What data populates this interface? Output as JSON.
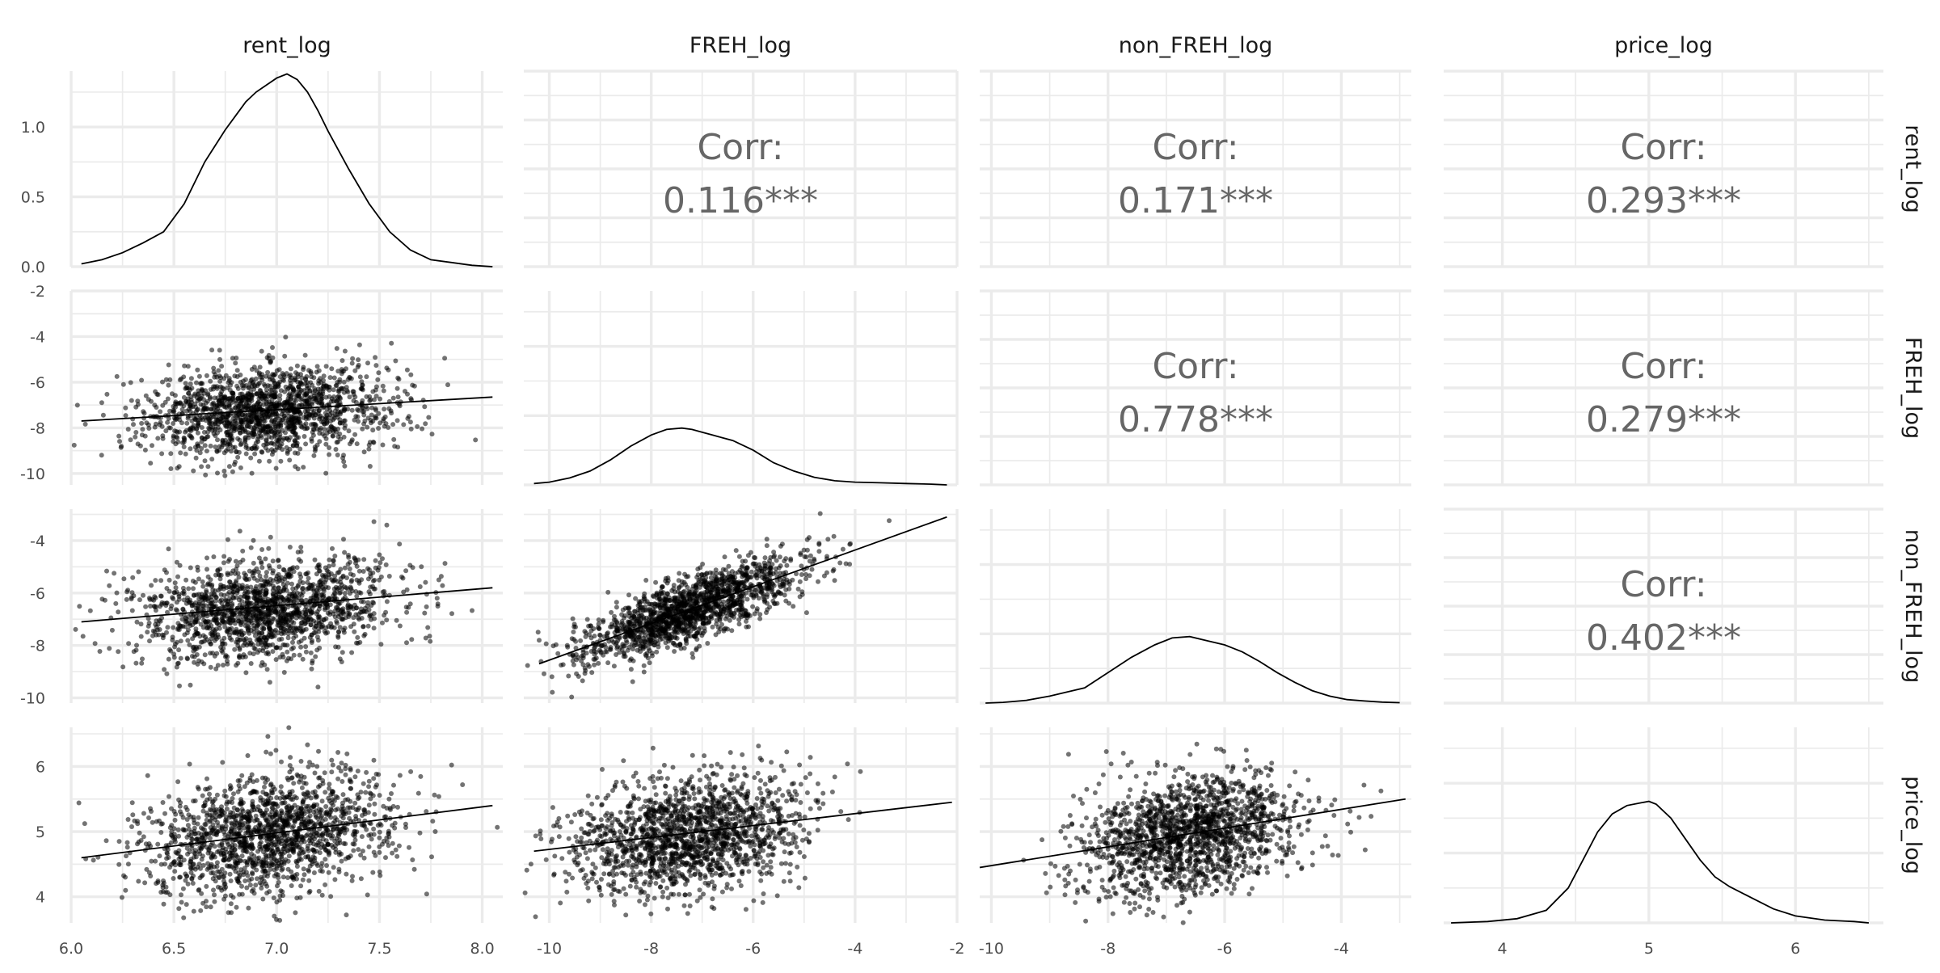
{
  "chart_data": {
    "type": "scatter",
    "title": "",
    "variables": [
      "rent_log",
      "FREH_log",
      "non_FREH_log",
      "price_log"
    ],
    "axes": {
      "rent_log": {
        "range": [
          6.0,
          8.1
        ],
        "ticks": [
          6.0,
          6.5,
          7.0,
          7.5,
          8.0
        ],
        "tick_labels": [
          "6.0",
          "6.5",
          "7.0",
          "7.5",
          "8.0"
        ]
      },
      "FREH_log": {
        "range": [
          -10.5,
          -2.0
        ],
        "ticks": [
          -10,
          -8,
          -6,
          -4,
          -2
        ],
        "tick_labels": [
          "-10",
          "-8",
          "-6",
          "-4",
          "-2"
        ]
      },
      "non_FREH_log": {
        "range": [
          -10.2,
          -2.8
        ],
        "ticks": [
          -10,
          -8,
          -6,
          -4
        ],
        "tick_labels": [
          "-10",
          "-8",
          "-6",
          "-4"
        ]
      },
      "price_log": {
        "range": [
          3.6,
          6.6
        ],
        "ticks": [
          4,
          5,
          6
        ],
        "tick_labels": [
          "4",
          "5",
          "6"
        ]
      }
    },
    "density_axis": {
      "range": [
        0.0,
        1.4
      ],
      "ticks": [
        0.0,
        0.5,
        1.0
      ],
      "tick_labels": [
        "0.0",
        "0.5",
        "1.0"
      ]
    },
    "density_curves": {
      "rent_log": {
        "x": [
          6.05,
          6.15,
          6.25,
          6.35,
          6.45,
          6.55,
          6.65,
          6.75,
          6.8,
          6.85,
          6.9,
          6.95,
          7.0,
          7.05,
          7.1,
          7.15,
          7.2,
          7.25,
          7.35,
          7.45,
          7.55,
          7.65,
          7.75,
          7.85,
          7.95,
          8.05
        ],
        "y": [
          0.02,
          0.05,
          0.1,
          0.17,
          0.25,
          0.45,
          0.75,
          0.98,
          1.08,
          1.18,
          1.25,
          1.3,
          1.35,
          1.38,
          1.34,
          1.25,
          1.12,
          0.97,
          0.7,
          0.45,
          0.25,
          0.12,
          0.05,
          0.03,
          0.01,
          0.0
        ]
      },
      "FREH_log": {
        "x": [
          -10.3,
          -10.0,
          -9.6,
          -9.2,
          -8.8,
          -8.4,
          -8.0,
          -7.7,
          -7.4,
          -7.2,
          -7.0,
          -6.8,
          -6.6,
          -6.4,
          -6.0,
          -5.6,
          -5.2,
          -4.8,
          -4.4,
          -4.0,
          -3.5,
          -3.0,
          -2.5,
          -2.2
        ],
        "y": [
          0.01,
          0.02,
          0.05,
          0.1,
          0.18,
          0.28,
          0.36,
          0.4,
          0.41,
          0.4,
          0.38,
          0.36,
          0.34,
          0.32,
          0.25,
          0.16,
          0.1,
          0.055,
          0.03,
          0.02,
          0.015,
          0.01,
          0.005,
          0.0
        ]
      },
      "non_FREH_log": {
        "x": [
          -10.1,
          -9.8,
          -9.4,
          -9.0,
          -8.7,
          -8.4,
          -8.0,
          -7.6,
          -7.2,
          -6.9,
          -6.6,
          -6.3,
          -6.0,
          -5.7,
          -5.4,
          -5.1,
          -4.8,
          -4.5,
          -4.2,
          -3.9,
          -3.6,
          -3.3,
          -3.0
        ],
        "y": [
          0.0,
          0.005,
          0.02,
          0.05,
          0.08,
          0.11,
          0.22,
          0.33,
          0.42,
          0.47,
          0.48,
          0.45,
          0.42,
          0.37,
          0.3,
          0.22,
          0.15,
          0.09,
          0.05,
          0.025,
          0.015,
          0.007,
          0.003
        ]
      },
      "price_log": {
        "x": [
          3.65,
          3.9,
          4.1,
          4.3,
          4.45,
          4.55,
          4.65,
          4.75,
          4.85,
          4.95,
          5.0,
          5.05,
          5.15,
          5.25,
          5.35,
          5.45,
          5.55,
          5.7,
          5.85,
          6.0,
          6.2,
          6.4,
          6.5
        ],
        "y": [
          0.0,
          0.01,
          0.03,
          0.09,
          0.25,
          0.45,
          0.65,
          0.78,
          0.84,
          0.86,
          0.87,
          0.85,
          0.75,
          0.6,
          0.45,
          0.33,
          0.26,
          0.18,
          0.1,
          0.05,
          0.02,
          0.01,
          0.0
        ]
      }
    },
    "correlations": [
      {
        "row": "rent_log",
        "col": "FREH_log",
        "label": "Corr:",
        "value": "0.116***"
      },
      {
        "row": "rent_log",
        "col": "non_FREH_log",
        "label": "Corr:",
        "value": "0.171***"
      },
      {
        "row": "rent_log",
        "col": "price_log",
        "label": "Corr:",
        "value": "0.293***"
      },
      {
        "row": "FREH_log",
        "col": "non_FREH_log",
        "label": "Corr:",
        "value": "0.778***"
      },
      {
        "row": "FREH_log",
        "col": "price_log",
        "label": "Corr:",
        "value": "0.279***"
      },
      {
        "row": "non_FREH_log",
        "col": "price_log",
        "label": "Corr:",
        "value": "0.402***"
      }
    ],
    "scatter_panels": [
      {
        "x": "rent_log",
        "y": "FREH_log",
        "fit_line": [
          [
            6.05,
            -7.7
          ],
          [
            8.05,
            -6.65
          ]
        ],
        "center": [
          6.95,
          -7.3
        ],
        "spread": [
          0.3,
          1.0
        ],
        "n_points": 1600
      },
      {
        "x": "rent_log",
        "y": "non_FREH_log",
        "fit_line": [
          [
            6.05,
            -7.1
          ],
          [
            8.05,
            -5.8
          ]
        ],
        "center": [
          6.95,
          -6.6
        ],
        "spread": [
          0.3,
          0.95
        ],
        "n_points": 1600
      },
      {
        "x": "FREH_log",
        "y": "non_FREH_log",
        "fit_line": [
          [
            -10.2,
            -8.7
          ],
          [
            -2.2,
            -3.1
          ]
        ],
        "center": [
          -7.2,
          -6.6
        ],
        "spread": [
          1.1,
          0.6
        ],
        "n_points": 1600
      },
      {
        "x": "rent_log",
        "y": "price_log",
        "fit_line": [
          [
            6.05,
            4.6
          ],
          [
            8.05,
            5.4
          ]
        ],
        "center": [
          6.95,
          4.95
        ],
        "spread": [
          0.3,
          0.45
        ],
        "n_points": 1600
      },
      {
        "x": "FREH_log",
        "y": "price_log",
        "fit_line": [
          [
            -10.3,
            4.7
          ],
          [
            -2.1,
            5.45
          ]
        ],
        "center": [
          -7.2,
          4.95
        ],
        "spread": [
          1.15,
          0.45
        ],
        "n_points": 1600
      },
      {
        "x": "non_FREH_log",
        "y": "price_log",
        "fit_line": [
          [
            -10.2,
            4.45
          ],
          [
            -2.9,
            5.5
          ]
        ],
        "center": [
          -6.6,
          4.95
        ],
        "spread": [
          0.95,
          0.45
        ],
        "n_points": 1600
      }
    ],
    "grid": true,
    "legend": "none"
  }
}
